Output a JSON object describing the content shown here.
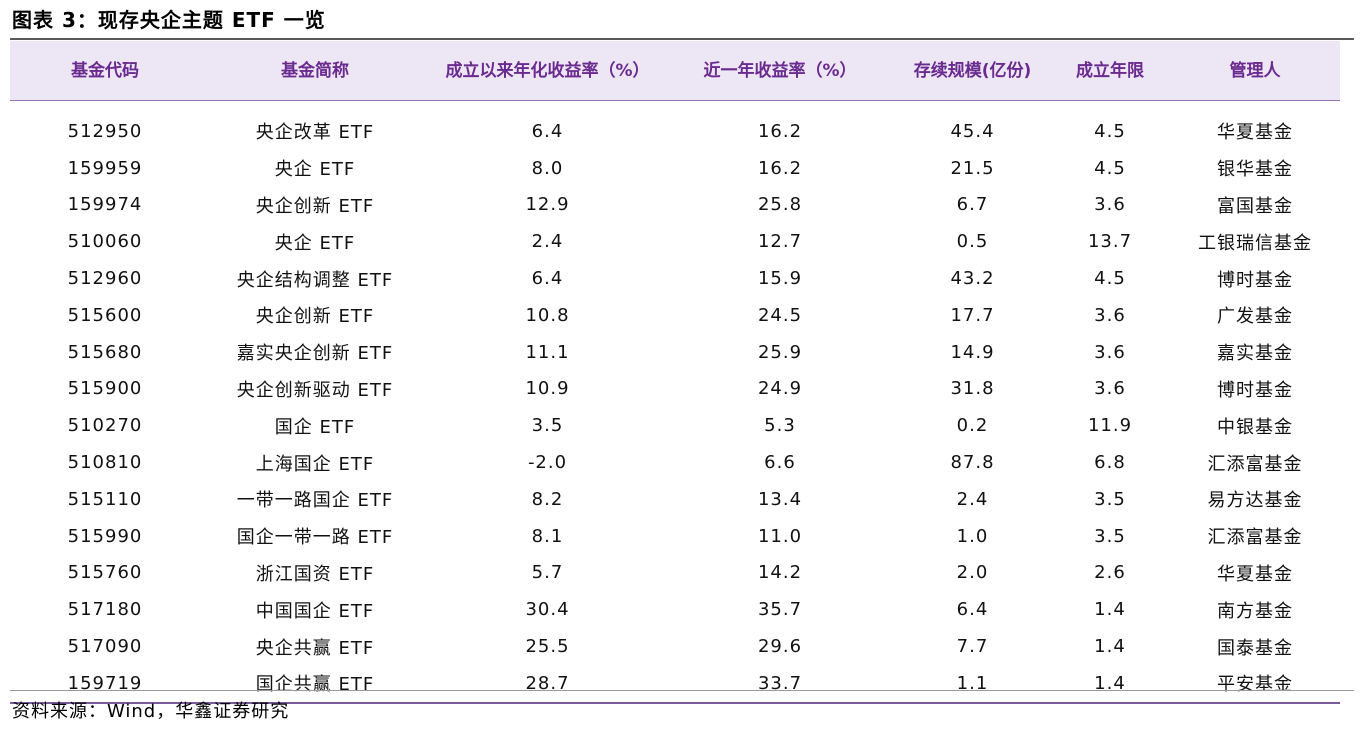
{
  "title": "图表 3：现存央企主题 ETF 一览",
  "table": {
    "headers": [
      "基金代码",
      "基金简称",
      "成立以来年化收益率（%）",
      "近一年收益率（%）",
      "存续规模(亿份)",
      "成立年限",
      "管理人"
    ],
    "rows": [
      [
        "512950",
        "央企改革 ETF",
        "6.4",
        "16.2",
        "45.4",
        "4.5",
        "华夏基金"
      ],
      [
        "159959",
        "央企 ETF",
        "8.0",
        "16.2",
        "21.5",
        "4.5",
        "银华基金"
      ],
      [
        "159974",
        "央企创新 ETF",
        "12.9",
        "25.8",
        "6.7",
        "3.6",
        "富国基金"
      ],
      [
        "510060",
        "央企 ETF",
        "2.4",
        "12.7",
        "0.5",
        "13.7",
        "工银瑞信基金"
      ],
      [
        "512960",
        "央企结构调整 ETF",
        "6.4",
        "15.9",
        "43.2",
        "4.5",
        "博时基金"
      ],
      [
        "515600",
        "央企创新 ETF",
        "10.8",
        "24.5",
        "17.7",
        "3.6",
        "广发基金"
      ],
      [
        "515680",
        "嘉实央企创新 ETF",
        "11.1",
        "25.9",
        "14.9",
        "3.6",
        "嘉实基金"
      ],
      [
        "515900",
        "央企创新驱动 ETF",
        "10.9",
        "24.9",
        "31.8",
        "3.6",
        "博时基金"
      ],
      [
        "510270",
        "国企 ETF",
        "3.5",
        "5.3",
        "0.2",
        "11.9",
        "中银基金"
      ],
      [
        "510810",
        "上海国企 ETF",
        "-2.0",
        "6.6",
        "87.8",
        "6.8",
        "汇添富基金"
      ],
      [
        "515110",
        "一带一路国企 ETF",
        "8.2",
        "13.4",
        "2.4",
        "3.5",
        "易方达基金"
      ],
      [
        "515990",
        "国企一带一路 ETF",
        "8.1",
        "11.0",
        "1.0",
        "3.5",
        "汇添富基金"
      ],
      [
        "515760",
        "浙江国资 ETF",
        "5.7",
        "14.2",
        "2.0",
        "2.6",
        "华夏基金"
      ],
      [
        "517180",
        "中国国企 ETF",
        "30.4",
        "35.7",
        "6.4",
        "1.4",
        "南方基金"
      ],
      [
        "517090",
        "央企共赢 ETF",
        "25.5",
        "29.6",
        "7.7",
        "1.4",
        "国泰基金"
      ],
      [
        "159719",
        "国企共赢 ETF",
        "28.7",
        "33.7",
        "1.1",
        "1.4",
        "平安基金"
      ]
    ]
  },
  "source": "资料来源：Wind，华鑫证券研究",
  "colors": {
    "header_bg": "#ede6f4",
    "header_text": "#6a2a8f",
    "rule": "#7a5a9a"
  }
}
